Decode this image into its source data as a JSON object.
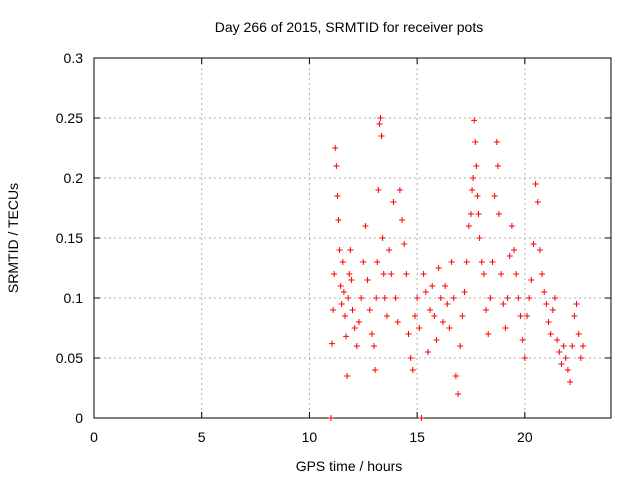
{
  "chart_data": {
    "type": "scatter",
    "title": "Day 266 of 2015, SRMTID for receiver pots",
    "xlabel": "GPS time / hours",
    "ylabel": "SRMTID / TECUs",
    "xlim": [
      0,
      24
    ],
    "ylim": [
      0,
      0.3
    ],
    "xticks": [
      "0",
      "5",
      "10",
      "15",
      "20"
    ],
    "yticks": [
      "0",
      "0.05",
      "0.1",
      "0.15",
      "0.2",
      "0.25",
      "0.3"
    ],
    "grid": true,
    "legend": "none",
    "marker": "+",
    "color": "#ff0000",
    "series": [
      {
        "points": [
          [
            11.0,
            0.0
          ],
          [
            11.05,
            0.062
          ],
          [
            11.1,
            0.09
          ],
          [
            11.15,
            0.12
          ],
          [
            11.2,
            0.225
          ],
          [
            11.25,
            0.21
          ],
          [
            11.3,
            0.185
          ],
          [
            11.35,
            0.165
          ],
          [
            11.4,
            0.14
          ],
          [
            11.45,
            0.11
          ],
          [
            11.5,
            0.095
          ],
          [
            11.55,
            0.13
          ],
          [
            11.6,
            0.105
          ],
          [
            11.65,
            0.085
          ],
          [
            11.7,
            0.068
          ],
          [
            11.75,
            0.035
          ],
          [
            11.8,
            0.1
          ],
          [
            11.85,
            0.12
          ],
          [
            11.9,
            0.14
          ],
          [
            11.95,
            0.115
          ],
          [
            12.0,
            0.09
          ],
          [
            12.1,
            0.075
          ],
          [
            12.2,
            0.06
          ],
          [
            12.3,
            0.08
          ],
          [
            12.4,
            0.1
          ],
          [
            12.5,
            0.13
          ],
          [
            12.6,
            0.16
          ],
          [
            12.7,
            0.115
          ],
          [
            12.8,
            0.09
          ],
          [
            12.9,
            0.07
          ],
          [
            13.0,
            0.06
          ],
          [
            13.05,
            0.04
          ],
          [
            13.1,
            0.1
          ],
          [
            13.15,
            0.13
          ],
          [
            13.2,
            0.19
          ],
          [
            13.25,
            0.245
          ],
          [
            13.3,
            0.25
          ],
          [
            13.35,
            0.235
          ],
          [
            13.4,
            0.15
          ],
          [
            13.45,
            0.12
          ],
          [
            13.5,
            0.1
          ],
          [
            13.6,
            0.085
          ],
          [
            13.7,
            0.14
          ],
          [
            13.8,
            0.12
          ],
          [
            13.9,
            0.18
          ],
          [
            14.0,
            0.1
          ],
          [
            14.1,
            0.08
          ],
          [
            14.2,
            0.19
          ],
          [
            14.3,
            0.165
          ],
          [
            14.4,
            0.145
          ],
          [
            14.5,
            0.12
          ],
          [
            14.6,
            0.07
          ],
          [
            14.7,
            0.05
          ],
          [
            14.8,
            0.04
          ],
          [
            14.9,
            0.085
          ],
          [
            15.0,
            0.1
          ],
          [
            15.1,
            0.075
          ],
          [
            15.2,
            0.0
          ],
          [
            15.3,
            0.12
          ],
          [
            15.4,
            0.105
          ],
          [
            15.5,
            0.055
          ],
          [
            15.6,
            0.09
          ],
          [
            15.7,
            0.11
          ],
          [
            15.8,
            0.085
          ],
          [
            15.9,
            0.065
          ],
          [
            16.0,
            0.125
          ],
          [
            16.1,
            0.1
          ],
          [
            16.2,
            0.08
          ],
          [
            16.3,
            0.11
          ],
          [
            16.4,
            0.095
          ],
          [
            16.5,
            0.075
          ],
          [
            16.6,
            0.13
          ],
          [
            16.7,
            0.1
          ],
          [
            16.8,
            0.035
          ],
          [
            16.9,
            0.02
          ],
          [
            17.0,
            0.06
          ],
          [
            17.1,
            0.085
          ],
          [
            17.2,
            0.105
          ],
          [
            17.3,
            0.13
          ],
          [
            17.4,
            0.16
          ],
          [
            17.5,
            0.17
          ],
          [
            17.55,
            0.19
          ],
          [
            17.6,
            0.2
          ],
          [
            17.65,
            0.248
          ],
          [
            17.7,
            0.23
          ],
          [
            17.75,
            0.21
          ],
          [
            17.8,
            0.185
          ],
          [
            17.85,
            0.17
          ],
          [
            17.9,
            0.15
          ],
          [
            18.0,
            0.13
          ],
          [
            18.1,
            0.12
          ],
          [
            18.2,
            0.09
          ],
          [
            18.3,
            0.07
          ],
          [
            18.4,
            0.1
          ],
          [
            18.5,
            0.13
          ],
          [
            18.6,
            0.185
          ],
          [
            18.7,
            0.23
          ],
          [
            18.75,
            0.21
          ],
          [
            18.8,
            0.17
          ],
          [
            18.9,
            0.12
          ],
          [
            19.0,
            0.095
          ],
          [
            19.1,
            0.075
          ],
          [
            19.2,
            0.1
          ],
          [
            19.3,
            0.135
          ],
          [
            19.4,
            0.16
          ],
          [
            19.5,
            0.14
          ],
          [
            19.6,
            0.12
          ],
          [
            19.7,
            0.1
          ],
          [
            19.8,
            0.085
          ],
          [
            19.9,
            0.065
          ],
          [
            20.0,
            0.05
          ],
          [
            20.1,
            0.085
          ],
          [
            20.2,
            0.1
          ],
          [
            20.3,
            0.115
          ],
          [
            20.4,
            0.145
          ],
          [
            20.5,
            0.195
          ],
          [
            20.6,
            0.18
          ],
          [
            20.7,
            0.14
          ],
          [
            20.8,
            0.12
          ],
          [
            20.9,
            0.105
          ],
          [
            21.0,
            0.095
          ],
          [
            21.1,
            0.08
          ],
          [
            21.2,
            0.07
          ],
          [
            21.3,
            0.09
          ],
          [
            21.4,
            0.1
          ],
          [
            21.5,
            0.065
          ],
          [
            21.6,
            0.055
          ],
          [
            21.7,
            0.045
          ],
          [
            21.8,
            0.06
          ],
          [
            21.9,
            0.05
          ],
          [
            22.0,
            0.04
          ],
          [
            22.1,
            0.03
          ],
          [
            22.2,
            0.06
          ],
          [
            22.3,
            0.085
          ],
          [
            22.4,
            0.095
          ],
          [
            22.5,
            0.07
          ],
          [
            22.6,
            0.05
          ],
          [
            22.7,
            0.06
          ]
        ]
      }
    ]
  }
}
